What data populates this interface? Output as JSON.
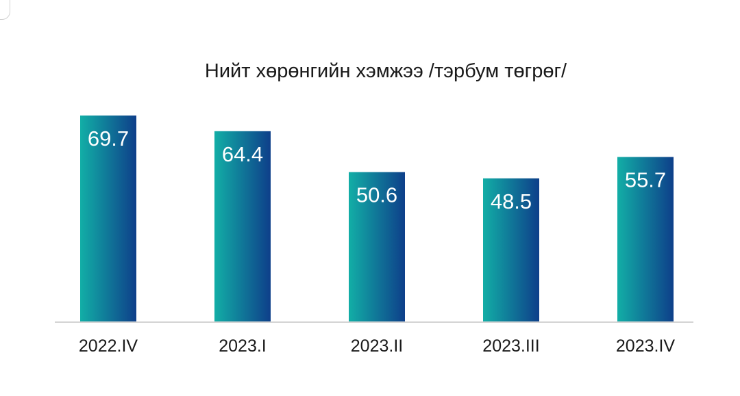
{
  "chart_data": {
    "type": "bar",
    "title": "Нийт хөрөнгийн хэмжээ /тэрбум төгрөг/",
    "xlabel": "",
    "ylabel": "",
    "categories": [
      "2022.IV",
      "2023.I",
      "2023.II",
      "2023.III",
      "2023.IV"
    ],
    "values": [
      69.7,
      64.4,
      50.6,
      48.5,
      55.7
    ],
    "value_labels": [
      "69.7",
      "64.4",
      "50.6",
      "48.5",
      "55.7"
    ],
    "grid": false,
    "legend": "none",
    "colors": {
      "bar_gradient_start": "#12aea6",
      "bar_gradient_end": "#0e3f8a",
      "baseline": "#d4d4d4",
      "label": "#ffffff"
    }
  }
}
